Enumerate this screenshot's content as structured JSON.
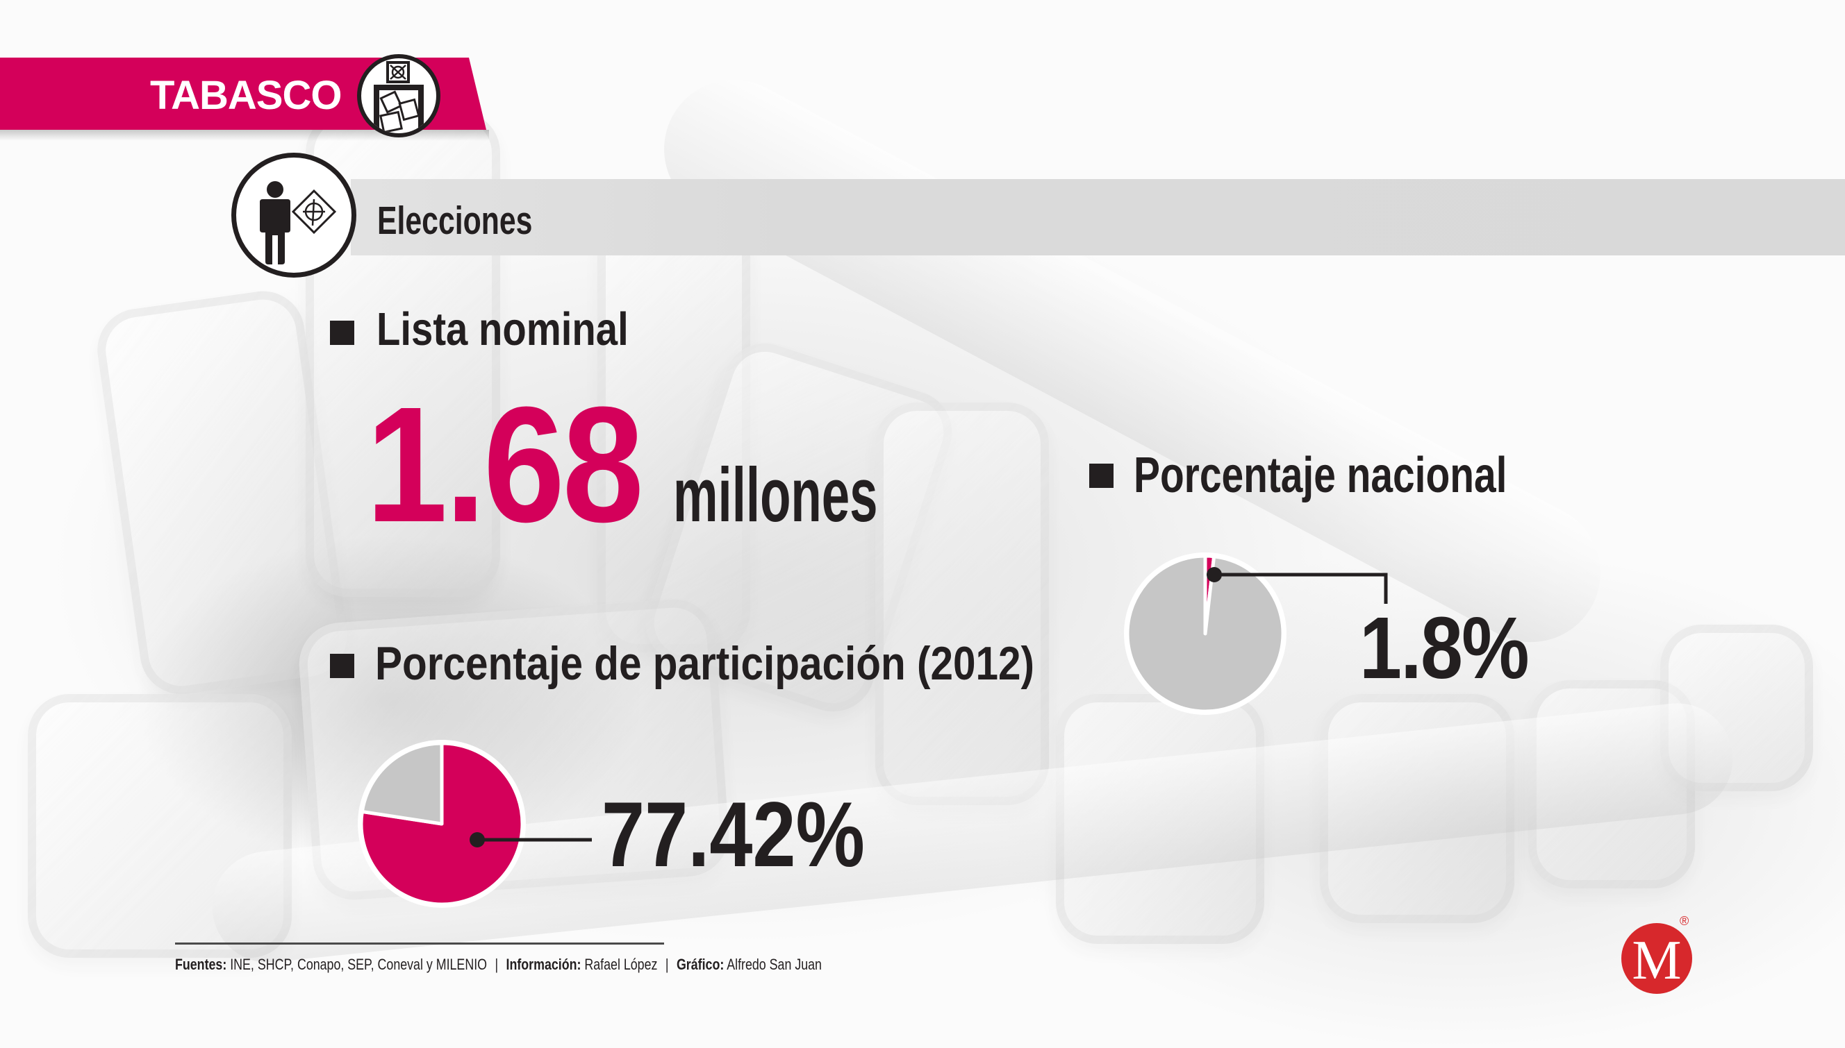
{
  "banner": {
    "state": "TABASCO",
    "icon": "ballot-box-icon"
  },
  "section": {
    "title": "Elecciones",
    "icon": "voter-icon"
  },
  "lista_nominal": {
    "label": "Lista nominal",
    "value": "1.68",
    "unit": "millones"
  },
  "footer": {
    "sources_label": "Fuentes:",
    "sources": "INE, SHCP, Conapo, SEP, Coneval y MILENIO",
    "separator": "|",
    "info_label": "Información:",
    "info": "Rafael López",
    "graphic_label": "Gráfico:",
    "graphic": "Alfredo San Juan"
  },
  "logo": {
    "letter": "M",
    "registered": "®"
  },
  "colors": {
    "brand_pink": "#d4005a",
    "pie_gray": "#c6c6c6",
    "text_dark": "#231f20",
    "bar_gray": "#dadada",
    "logo_red": "#d7282c"
  },
  "chart_data": [
    {
      "type": "pie",
      "title": "Porcentaje de participación (2012)",
      "values": [
        77.42,
        22.58
      ],
      "highlight_index": 0,
      "data_label": "77.42%",
      "colors": [
        "#d4005a",
        "#c6c6c6"
      ]
    },
    {
      "type": "pie",
      "title": "Porcentaje nacional",
      "values": [
        1.8,
        98.2
      ],
      "highlight_index": 0,
      "data_label": "1.8%",
      "colors": [
        "#d4005a",
        "#c6c6c6"
      ]
    }
  ]
}
